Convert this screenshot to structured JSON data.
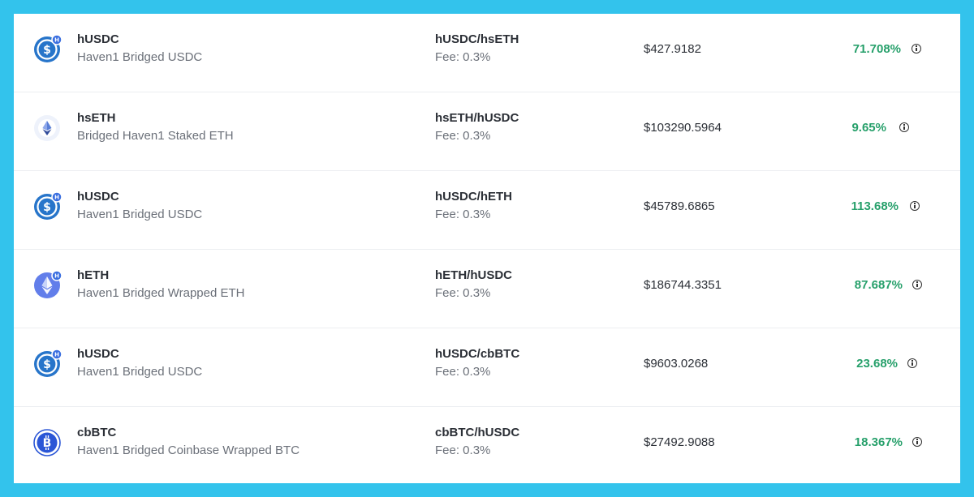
{
  "colors": {
    "frame": "#33c3ec",
    "apr_green": "#27a06b",
    "usdc_blue": "#2775ca",
    "eth_purple": "#627eea",
    "badge_blue": "#3b6fe0"
  },
  "pools": [
    {
      "icon": "usdc-icon",
      "symbol": "hUSDC",
      "name": "Haven1 Bridged USDC",
      "pair": "hUSDC/hsETH",
      "fee": "Fee: 0.3%",
      "price": "$427.9182",
      "apr": "71.708%"
    },
    {
      "icon": "hseth-icon",
      "symbol": "hsETH",
      "name": "Bridged Haven1 Staked ETH",
      "pair": "hsETH/hUSDC",
      "fee": "Fee: 0.3%",
      "price": "$103290.5964",
      "apr": "9.65%"
    },
    {
      "icon": "usdc-icon",
      "symbol": "hUSDC",
      "name": "Haven1 Bridged USDC",
      "pair": "hUSDC/hETH",
      "fee": "Fee: 0.3%",
      "price": "$45789.6865",
      "apr": "113.68%"
    },
    {
      "icon": "eth-icon",
      "symbol": "hETH",
      "name": "Haven1 Bridged Wrapped ETH",
      "pair": "hETH/hUSDC",
      "fee": "Fee: 0.3%",
      "price": "$186744.3351",
      "apr": "87.687%"
    },
    {
      "icon": "usdc-icon",
      "symbol": "hUSDC",
      "name": "Haven1 Bridged USDC",
      "pair": "hUSDC/cbBTC",
      "fee": "Fee: 0.3%",
      "price": "$9603.0268",
      "apr": "23.68%"
    },
    {
      "icon": "btc-icon",
      "symbol": "cbBTC",
      "name": "Haven1 Bridged Coinbase Wrapped BTC",
      "pair": "cbBTC/hUSDC",
      "fee": "Fee: 0.3%",
      "price": "$27492.9088",
      "apr": "18.367%"
    }
  ]
}
